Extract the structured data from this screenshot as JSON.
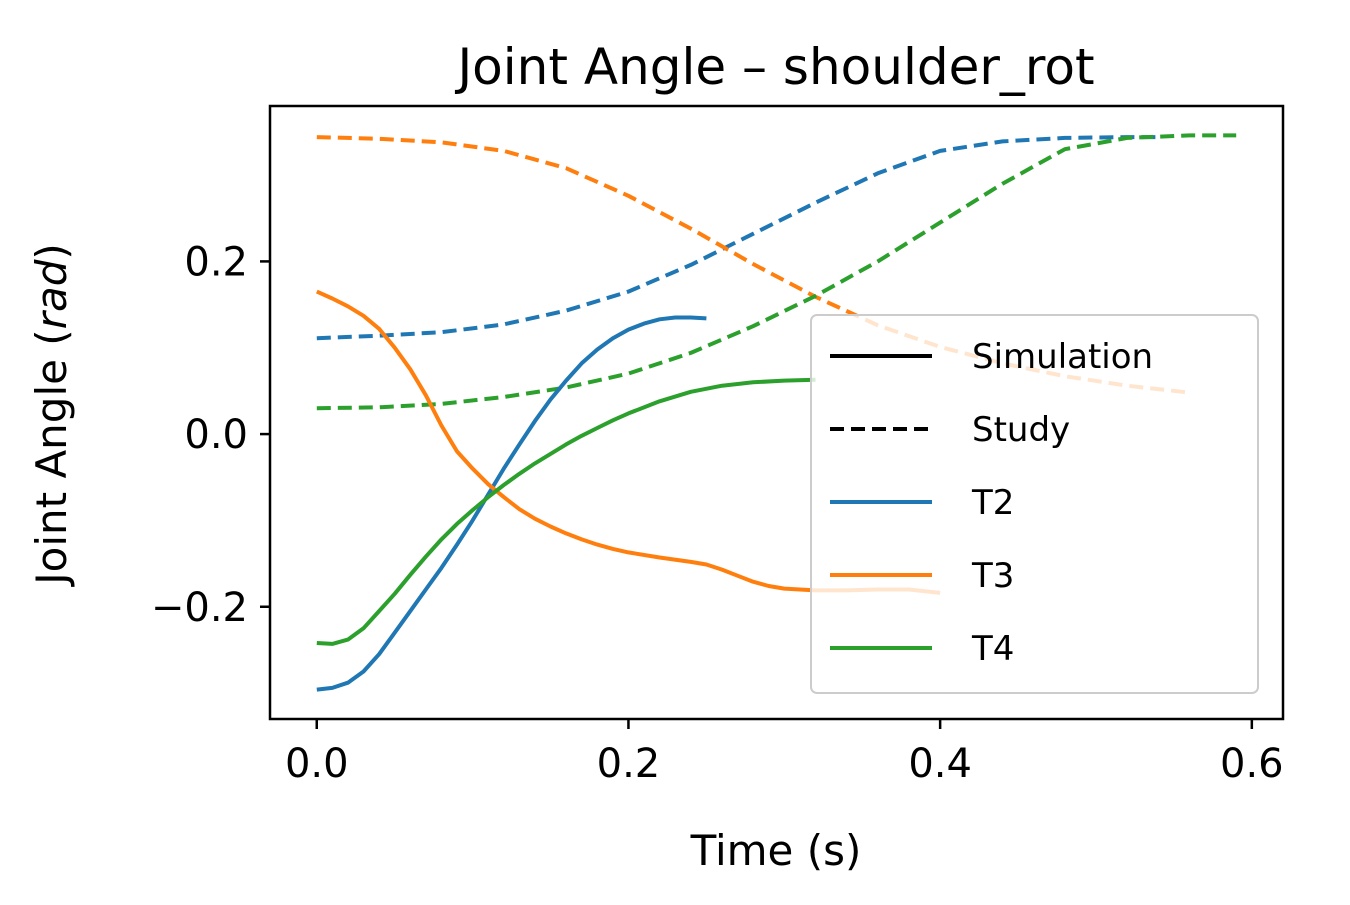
{
  "chart_data": {
    "type": "line",
    "title": "Joint Angle – shoulder_rot",
    "xlabel": "Time (s)",
    "ylabel_main": "Joint Angle (",
    "ylabel_italic": "rad",
    "ylabel_close": ")",
    "xlim": [
      -0.03,
      0.62
    ],
    "ylim": [
      -0.33,
      0.38
    ],
    "xticks": [
      0.0,
      0.2,
      0.4,
      0.6
    ],
    "xtick_labels": [
      "0.0",
      "0.2",
      "0.4",
      "0.6"
    ],
    "yticks": [
      -0.2,
      0.0,
      0.2
    ],
    "ytick_labels": [
      "−0.2",
      "0.0",
      "0.2"
    ],
    "grid": false,
    "legend_position": "lower-right",
    "legend": [
      {
        "label": "Simulation",
        "color": "#000000",
        "style": "solid"
      },
      {
        "label": "Study",
        "color": "#000000",
        "style": "dashed"
      },
      {
        "label": "T2",
        "color": "#1f77b4",
        "style": "solid"
      },
      {
        "label": "T3",
        "color": "#ff7f0e",
        "style": "solid"
      },
      {
        "label": "T4",
        "color": "#2ca02c",
        "style": "solid"
      }
    ],
    "series": [
      {
        "trial": "T2",
        "kind": "Simulation",
        "color": "#1f77b4",
        "style": "solid",
        "x": [
          0.0,
          0.01,
          0.02,
          0.03,
          0.04,
          0.05,
          0.06,
          0.07,
          0.08,
          0.09,
          0.1,
          0.11,
          0.12,
          0.13,
          0.14,
          0.15,
          0.16,
          0.17,
          0.18,
          0.19,
          0.2,
          0.21,
          0.22,
          0.23,
          0.24,
          0.25
        ],
        "y": [
          -0.296,
          -0.294,
          -0.288,
          -0.275,
          -0.255,
          -0.23,
          -0.205,
          -0.18,
          -0.155,
          -0.128,
          -0.1,
          -0.07,
          -0.04,
          -0.012,
          0.015,
          0.04,
          0.062,
          0.082,
          0.098,
          0.111,
          0.121,
          0.128,
          0.133,
          0.135,
          0.135,
          0.134
        ]
      },
      {
        "trial": "T3",
        "kind": "Simulation",
        "color": "#ff7f0e",
        "style": "solid",
        "x": [
          0.0,
          0.01,
          0.02,
          0.03,
          0.04,
          0.05,
          0.06,
          0.07,
          0.08,
          0.09,
          0.1,
          0.11,
          0.12,
          0.13,
          0.14,
          0.15,
          0.16,
          0.17,
          0.18,
          0.19,
          0.2,
          0.22,
          0.24,
          0.25,
          0.26,
          0.27,
          0.28,
          0.29,
          0.3,
          0.32,
          0.34,
          0.36,
          0.38,
          0.4
        ],
        "y": [
          0.165,
          0.157,
          0.148,
          0.137,
          0.122,
          0.1,
          0.075,
          0.045,
          0.01,
          -0.02,
          -0.04,
          -0.058,
          -0.073,
          -0.087,
          -0.098,
          -0.107,
          -0.115,
          -0.122,
          -0.128,
          -0.133,
          -0.137,
          -0.143,
          -0.148,
          -0.151,
          -0.157,
          -0.164,
          -0.171,
          -0.176,
          -0.179,
          -0.181,
          -0.181,
          -0.18,
          -0.18,
          -0.184
        ]
      },
      {
        "trial": "T4",
        "kind": "Simulation",
        "color": "#2ca02c",
        "style": "solid",
        "x": [
          0.0,
          0.01,
          0.02,
          0.03,
          0.04,
          0.05,
          0.06,
          0.07,
          0.08,
          0.09,
          0.1,
          0.11,
          0.12,
          0.13,
          0.14,
          0.15,
          0.16,
          0.17,
          0.18,
          0.19,
          0.2,
          0.22,
          0.24,
          0.26,
          0.28,
          0.3,
          0.32
        ],
        "y": [
          -0.242,
          -0.243,
          -0.238,
          -0.225,
          -0.205,
          -0.185,
          -0.163,
          -0.142,
          -0.122,
          -0.104,
          -0.088,
          -0.073,
          -0.059,
          -0.046,
          -0.034,
          -0.023,
          -0.012,
          -0.002,
          0.007,
          0.016,
          0.024,
          0.038,
          0.049,
          0.056,
          0.06,
          0.062,
          0.063
        ]
      },
      {
        "trial": "T2",
        "kind": "Study",
        "color": "#1f77b4",
        "style": "dashed",
        "x": [
          0.0,
          0.04,
          0.08,
          0.12,
          0.16,
          0.2,
          0.24,
          0.28,
          0.32,
          0.36,
          0.4,
          0.44,
          0.48,
          0.52,
          0.54
        ],
        "y": [
          0.111,
          0.114,
          0.118,
          0.127,
          0.143,
          0.165,
          0.196,
          0.232,
          0.268,
          0.302,
          0.328,
          0.339,
          0.343,
          0.344,
          0.344
        ]
      },
      {
        "trial": "T3",
        "kind": "Study",
        "color": "#ff7f0e",
        "style": "dashed",
        "x": [
          0.0,
          0.04,
          0.08,
          0.12,
          0.16,
          0.2,
          0.24,
          0.28,
          0.32,
          0.36,
          0.4,
          0.44,
          0.48,
          0.52,
          0.56
        ],
        "y": [
          0.344,
          0.342,
          0.338,
          0.328,
          0.308,
          0.276,
          0.238,
          0.197,
          0.159,
          0.126,
          0.101,
          0.082,
          0.067,
          0.056,
          0.048
        ]
      },
      {
        "trial": "T4",
        "kind": "Study",
        "color": "#2ca02c",
        "style": "dashed",
        "x": [
          0.0,
          0.04,
          0.08,
          0.12,
          0.16,
          0.2,
          0.24,
          0.28,
          0.32,
          0.36,
          0.4,
          0.44,
          0.48,
          0.52,
          0.56,
          0.59
        ],
        "y": [
          0.03,
          0.031,
          0.035,
          0.043,
          0.054,
          0.07,
          0.094,
          0.125,
          0.16,
          0.2,
          0.245,
          0.29,
          0.33,
          0.343,
          0.346,
          0.346
        ]
      }
    ]
  }
}
